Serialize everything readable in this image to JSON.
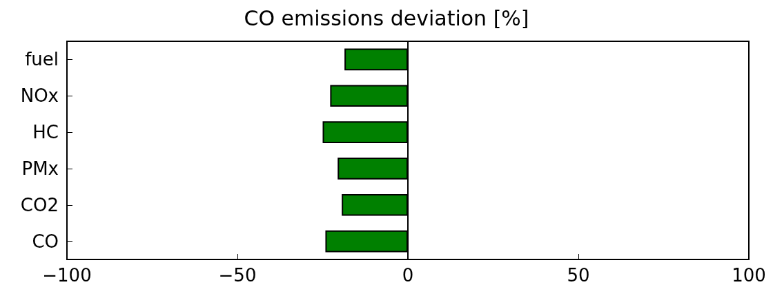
{
  "chart_data": {
    "type": "bar",
    "orientation": "horizontal",
    "title": "CO emissions deviation [%]",
    "categories": [
      "fuel",
      "NOx",
      "HC",
      "PMx",
      "CO2",
      "CO"
    ],
    "values": [
      -18.6,
      -22.8,
      -25.0,
      -20.6,
      -19.4,
      -24.2
    ],
    "color": "#008000",
    "xlim": [
      -100,
      100
    ],
    "xticks": [
      -100,
      -50,
      0,
      50,
      100
    ],
    "ref_lines": [
      {
        "axis": "x",
        "value": 0,
        "color": "#000000"
      }
    ],
    "grid": false
  }
}
